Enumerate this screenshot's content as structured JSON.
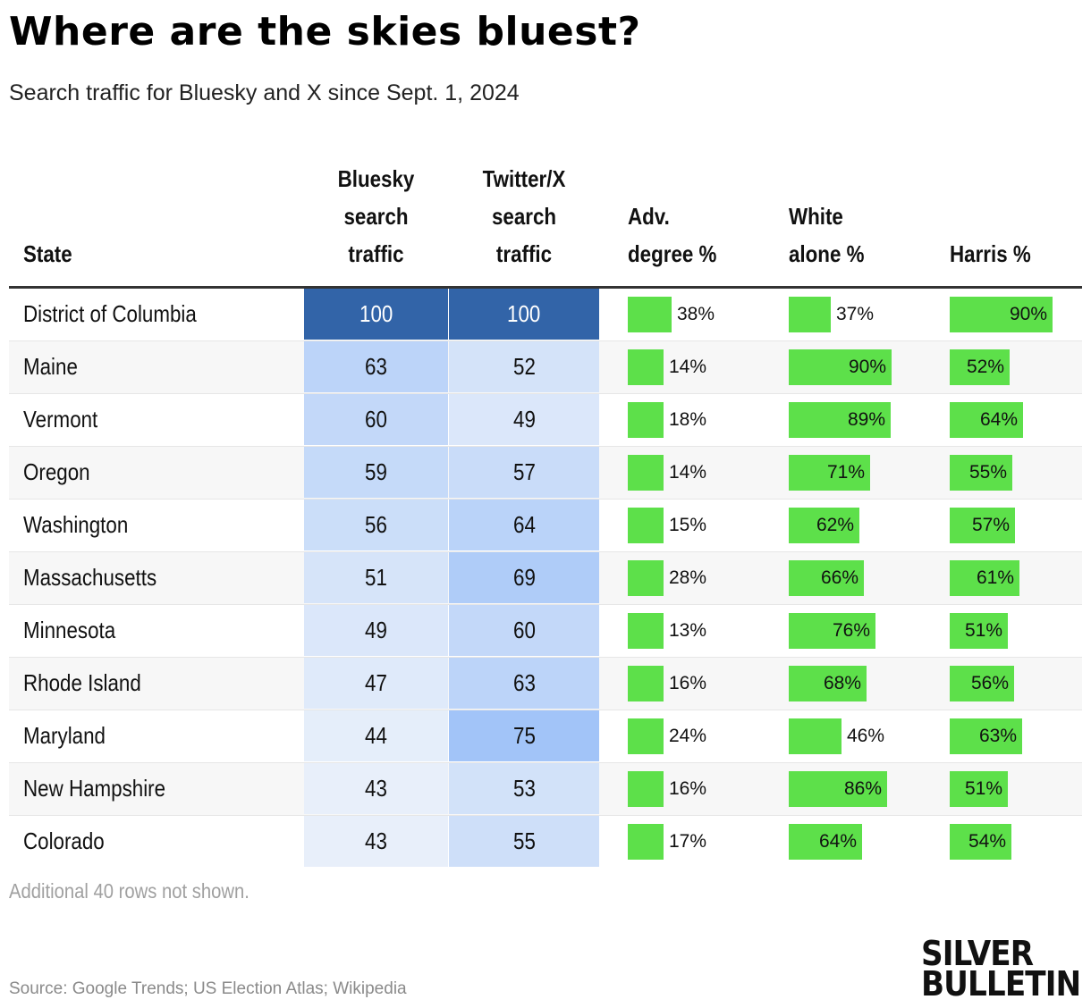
{
  "title": "Where are the skies bluest?",
  "subtitle": "Search traffic for Bluesky and X since Sept. 1, 2024",
  "headers": {
    "state": "State",
    "bluesky": [
      "Bluesky",
      "search",
      "traffic"
    ],
    "twitter": [
      "Twitter/X",
      "search",
      "traffic"
    ],
    "adv": [
      "Adv.",
      "degree %"
    ],
    "white": [
      "White",
      "alone %"
    ],
    "harris": [
      "Harris %"
    ]
  },
  "chart_data": {
    "type": "table",
    "title": "Where are the skies bluest?",
    "subtitle": "Search traffic for Bluesky and X since Sept. 1, 2024",
    "columns": [
      "State",
      "Bluesky search traffic",
      "Twitter/X search traffic",
      "Adv. degree %",
      "White alone %",
      "Harris %"
    ],
    "rows": [
      {
        "state": "District of Columbia",
        "bluesky": 100,
        "twitter": 100,
        "adv": 38,
        "white": 37,
        "harris": 90
      },
      {
        "state": "Maine",
        "bluesky": 63,
        "twitter": 52,
        "adv": 14,
        "white": 90,
        "harris": 52
      },
      {
        "state": "Vermont",
        "bluesky": 60,
        "twitter": 49,
        "adv": 18,
        "white": 89,
        "harris": 64
      },
      {
        "state": "Oregon",
        "bluesky": 59,
        "twitter": 57,
        "adv": 14,
        "white": 71,
        "harris": 55
      },
      {
        "state": "Washington",
        "bluesky": 56,
        "twitter": 64,
        "adv": 15,
        "white": 62,
        "harris": 57
      },
      {
        "state": "Massachusetts",
        "bluesky": 51,
        "twitter": 69,
        "adv": 28,
        "white": 66,
        "harris": 61
      },
      {
        "state": "Minnesota",
        "bluesky": 49,
        "twitter": 60,
        "adv": 13,
        "white": 76,
        "harris": 51
      },
      {
        "state": "Rhode Island",
        "bluesky": 47,
        "twitter": 63,
        "adv": 16,
        "white": 68,
        "harris": 56
      },
      {
        "state": "Maryland",
        "bluesky": 44,
        "twitter": 75,
        "adv": 24,
        "white": 46,
        "harris": 63
      },
      {
        "state": "New Hampshire",
        "bluesky": 43,
        "twitter": 53,
        "adv": 16,
        "white": 86,
        "harris": 51
      },
      {
        "state": "Colorado",
        "bluesky": 43,
        "twitter": 55,
        "adv": 17,
        "white": 64,
        "harris": 54
      }
    ],
    "bar_color": "#5de04a",
    "heat_colors": {
      "light": "#eef3fa",
      "mid": "#b6dbfb",
      "strong": "#a0c3f8",
      "max": "#3264a8"
    }
  },
  "note": "Additional 40 rows not shown.",
  "source": "Source: Google Trends; US Election Atlas; Wikipedia",
  "logo": [
    "SILVER",
    "BULLETIN"
  ]
}
